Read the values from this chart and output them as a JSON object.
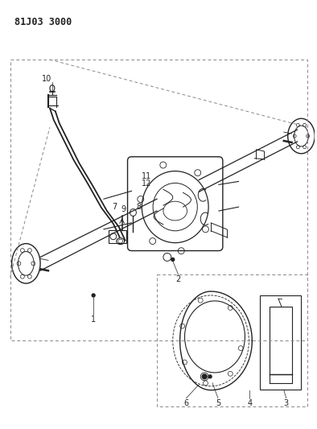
{
  "title": "81J03 3000",
  "bg_color": "#ffffff",
  "fig_width": 3.94,
  "fig_height": 5.33,
  "dpi": 100,
  "line_color": "#222222",
  "dash_color": "#888888"
}
